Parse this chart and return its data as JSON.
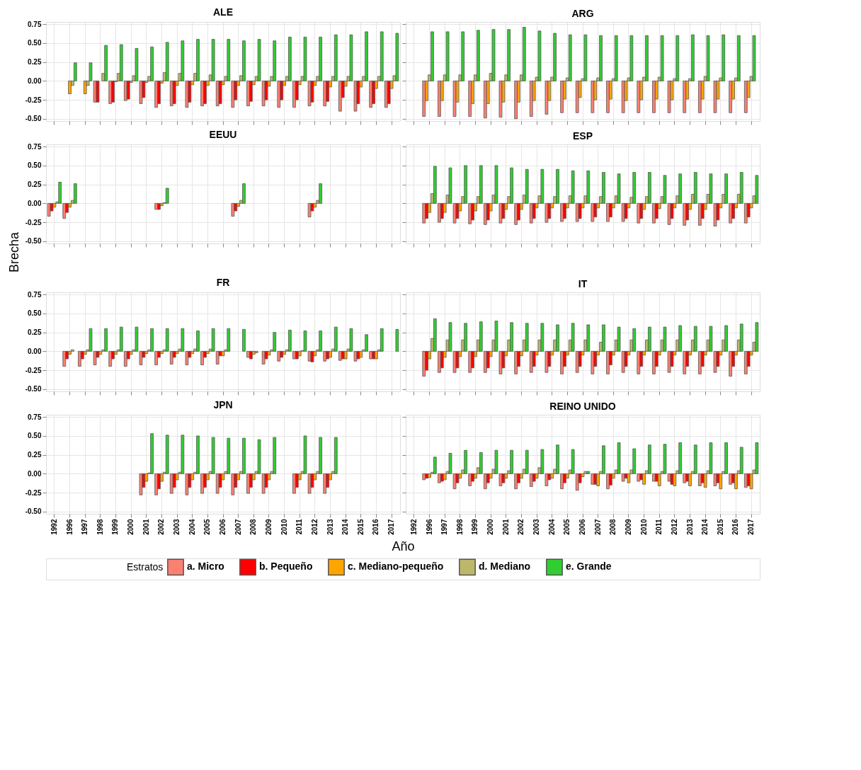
{
  "chart_data": [
    {
      "type": "bar",
      "title": "ALE",
      "tick_labels": "y",
      "grid": true,
      "legend": "bottom",
      "legend_title": "Estratos",
      "ylim": [
        -0.53,
        0.78
      ],
      "yticks": [
        {
          "value": -0.5,
          "label": "-0.50"
        },
        {
          "value": -0.25,
          "label": "-0.25"
        },
        {
          "value": 0,
          "label": "0.00"
        },
        {
          "value": 0.25,
          "label": "0.25"
        },
        {
          "value": 0.5,
          "label": "0.50"
        },
        {
          "value": 0.75,
          "label": "0.75"
        }
      ],
      "categories": [
        "1992",
        "1996",
        "1997",
        "1998",
        "1999",
        "2000",
        "2001",
        "2002",
        "2003",
        "2004",
        "2005",
        "2006",
        "2007",
        "2008",
        "2009",
        "2010",
        "2011",
        "2012",
        "2013",
        "2014",
        "2015",
        "2016",
        "2017"
      ],
      "series": [
        {
          "name": "a. Micro",
          "color": "#fa8072",
          "values": [
            null,
            null,
            null,
            -0.28,
            -0.3,
            -0.26,
            -0.3,
            -0.35,
            -0.33,
            -0.35,
            -0.33,
            -0.33,
            -0.35,
            -0.33,
            -0.33,
            -0.35,
            -0.35,
            -0.33,
            -0.33,
            -0.4,
            -0.4,
            -0.35,
            -0.35
          ]
        },
        {
          "name": "b. Pequeño",
          "color": "#ff0000",
          "values": [
            null,
            null,
            null,
            -0.28,
            -0.28,
            -0.24,
            -0.22,
            -0.3,
            -0.3,
            -0.28,
            -0.3,
            -0.3,
            -0.25,
            -0.27,
            -0.25,
            -0.25,
            -0.25,
            -0.28,
            -0.27,
            -0.22,
            -0.3,
            -0.3,
            -0.3
          ]
        },
        {
          "name": "c. Mediano-pequeño",
          "color": "#ffa500",
          "values": [
            null,
            -0.17,
            -0.17,
            null,
            -0.01,
            -0.02,
            -0.02,
            -0.03,
            -0.06,
            -0.05,
            -0.06,
            -0.05,
            -0.06,
            -0.05,
            -0.07,
            -0.06,
            -0.05,
            -0.06,
            -0.08,
            -0.07,
            -0.08,
            -0.1,
            -0.1
          ]
        },
        {
          "name": "d. Mediano",
          "color": "#bdb76b",
          "values": [
            null,
            -0.06,
            -0.06,
            0.1,
            0.1,
            0.07,
            0.06,
            0.11,
            0.1,
            0.1,
            0.08,
            0.06,
            0.07,
            0.06,
            0.06,
            0.06,
            0.06,
            0.06,
            0.06,
            0.06,
            0.06,
            0.06,
            0.07
          ]
        },
        {
          "name": "e. Grande",
          "color": "#32cd32",
          "values": [
            null,
            0.24,
            0.24,
            0.47,
            0.48,
            0.43,
            0.45,
            0.51,
            0.53,
            0.55,
            0.55,
            0.55,
            0.53,
            0.55,
            0.53,
            0.58,
            0.58,
            0.58,
            0.61,
            0.61,
            0.65,
            0.65,
            0.63
          ]
        }
      ]
    },
    {
      "type": "bar",
      "title": "ARG",
      "tick_labels": false,
      "grid": true,
      "ylim": [
        -0.53,
        0.78
      ],
      "yticks": [
        -0.5,
        -0.25,
        0,
        0.25,
        0.5,
        0.75
      ],
      "categories": [
        "1992",
        "1996",
        "1997",
        "1998",
        "1999",
        "2000",
        "2001",
        "2002",
        "2003",
        "2004",
        "2005",
        "2006",
        "2007",
        "2008",
        "2009",
        "2010",
        "2011",
        "2012",
        "2013",
        "2014",
        "2015",
        "2016",
        "2017"
      ],
      "series": [
        {
          "name": "a. Micro",
          "color": "#fa8072",
          "values": [
            null,
            -0.47,
            -0.47,
            -0.47,
            -0.47,
            -0.49,
            -0.48,
            -0.5,
            -0.47,
            -0.44,
            -0.42,
            -0.42,
            -0.42,
            -0.42,
            -0.42,
            -0.42,
            -0.42,
            -0.42,
            -0.42,
            -0.42,
            -0.42,
            -0.42,
            -0.42
          ]
        },
        {
          "name": "c. Mediano-pequeño",
          "color": "#ffa500",
          "values": [
            null,
            -0.26,
            -0.26,
            -0.28,
            -0.3,
            -0.3,
            -0.28,
            -0.28,
            -0.26,
            -0.26,
            -0.24,
            -0.22,
            -0.25,
            -0.24,
            -0.26,
            -0.25,
            -0.24,
            -0.25,
            -0.24,
            -0.24,
            -0.24,
            -0.24,
            -0.22
          ]
        },
        {
          "name": "d. Mediano",
          "color": "#bdb76b",
          "values": [
            null,
            0.08,
            0.08,
            0.08,
            0.08,
            0.1,
            0.08,
            0.08,
            0.05,
            0.05,
            0.04,
            0.03,
            0.04,
            0.03,
            0.04,
            0.05,
            0.05,
            0.03,
            0.03,
            0.06,
            0.04,
            0.04,
            0.06
          ]
        },
        {
          "name": "e. Grande",
          "color": "#32cd32",
          "values": [
            null,
            0.65,
            0.65,
            0.65,
            0.67,
            0.68,
            0.68,
            0.71,
            0.66,
            0.63,
            0.61,
            0.61,
            0.6,
            0.6,
            0.6,
            0.6,
            0.6,
            0.6,
            0.61,
            0.6,
            0.61,
            0.6,
            0.6
          ]
        }
      ]
    },
    {
      "type": "bar",
      "title": "EEUU",
      "ylabel": "Brecha",
      "tick_labels": "y",
      "grid": true,
      "ylim": [
        -0.53,
        0.78
      ],
      "yticks": [
        {
          "value": -0.5,
          "label": "-0.50"
        },
        {
          "value": -0.25,
          "label": "-0.25"
        },
        {
          "value": 0,
          "label": "0.00"
        },
        {
          "value": 0.25,
          "label": "0.25"
        },
        {
          "value": 0.5,
          "label": "0.50"
        },
        {
          "value": 0.75,
          "label": "0.75"
        }
      ],
      "categories": [
        "1992",
        "1996",
        "1997",
        "1998",
        "1999",
        "2000",
        "2001",
        "2002",
        "2003",
        "2004",
        "2005",
        "2006",
        "2007",
        "2008",
        "2009",
        "2010",
        "2011",
        "2012",
        "2013",
        "2014",
        "2015",
        "2016",
        "2017"
      ],
      "series": [
        {
          "name": "a. Micro",
          "color": "#fa8072",
          "values": [
            -0.17,
            -0.2,
            null,
            null,
            null,
            null,
            null,
            -0.08,
            null,
            null,
            null,
            null,
            -0.17,
            null,
            null,
            null,
            null,
            -0.18,
            null,
            null,
            null,
            null,
            null
          ]
        },
        {
          "name": "b. Pequeño",
          "color": "#ff0000",
          "values": [
            -0.1,
            -0.12,
            null,
            null,
            null,
            null,
            null,
            -0.08,
            null,
            null,
            null,
            null,
            -0.1,
            null,
            null,
            null,
            null,
            -0.1,
            null,
            null,
            null,
            null,
            null
          ]
        },
        {
          "name": "c. Mediano-pequeño",
          "color": "#ffa500",
          "values": [
            -0.05,
            -0.05,
            null,
            null,
            null,
            null,
            null,
            -0.03,
            null,
            null,
            null,
            null,
            -0.04,
            null,
            null,
            null,
            null,
            -0.05,
            null,
            null,
            null,
            null,
            null
          ]
        },
        {
          "name": "d. Mediano",
          "color": "#bdb76b",
          "values": [
            0.02,
            0.04,
            null,
            null,
            null,
            null,
            null,
            0.01,
            null,
            null,
            null,
            null,
            0.04,
            null,
            null,
            null,
            null,
            0.04,
            null,
            null,
            null,
            null,
            null
          ]
        },
        {
          "name": "e. Grande",
          "color": "#32cd32",
          "values": [
            0.28,
            0.26,
            null,
            null,
            null,
            null,
            null,
            0.2,
            null,
            null,
            null,
            null,
            0.26,
            null,
            null,
            null,
            null,
            0.26,
            null,
            null,
            null,
            null,
            null
          ]
        }
      ]
    },
    {
      "type": "bar",
      "title": "ESP",
      "tick_labels": false,
      "grid": true,
      "ylim": [
        -0.53,
        0.78
      ],
      "yticks": [
        -0.5,
        -0.25,
        0,
        0.25,
        0.5,
        0.75
      ],
      "categories": [
        "1992",
        "1996",
        "1997",
        "1998",
        "1999",
        "2000",
        "2001",
        "2002",
        "2003",
        "2004",
        "2005",
        "2006",
        "2007",
        "2008",
        "2009",
        "2010",
        "2011",
        "2012",
        "2013",
        "2014",
        "2015",
        "2016",
        "2017"
      ],
      "series": [
        {
          "name": "a. Micro",
          "color": "#fa8072",
          "values": [
            null,
            -0.26,
            -0.25,
            -0.26,
            -0.27,
            -0.28,
            -0.26,
            -0.28,
            -0.26,
            -0.25,
            -0.24,
            -0.24,
            -0.24,
            -0.24,
            -0.24,
            -0.26,
            -0.26,
            -0.28,
            -0.29,
            -0.29,
            -0.3,
            -0.26,
            -0.26
          ]
        },
        {
          "name": "b. Pequeño",
          "color": "#ff0000",
          "values": [
            null,
            -0.2,
            -0.2,
            -0.2,
            -0.22,
            -0.22,
            -0.2,
            -0.22,
            -0.2,
            -0.2,
            -0.2,
            -0.2,
            -0.18,
            -0.18,
            -0.2,
            -0.2,
            -0.2,
            -0.2,
            -0.22,
            -0.2,
            -0.22,
            -0.2,
            -0.18
          ]
        },
        {
          "name": "c. Mediano-pequeño",
          "color": "#ffa500",
          "values": [
            null,
            -0.12,
            -0.12,
            -0.1,
            -0.1,
            -0.1,
            -0.08,
            -0.08,
            -0.06,
            -0.06,
            -0.06,
            -0.06,
            -0.06,
            -0.06,
            -0.06,
            -0.08,
            -0.07,
            -0.06,
            -0.08,
            -0.08,
            -0.06,
            -0.06,
            -0.06
          ]
        },
        {
          "name": "d. Mediano",
          "color": "#bdb76b",
          "values": [
            null,
            0.13,
            0.11,
            0.09,
            0.09,
            0.11,
            0.09,
            0.11,
            0.1,
            0.09,
            0.1,
            0.1,
            0.09,
            0.1,
            0.08,
            0.09,
            0.09,
            0.1,
            0.12,
            0.12,
            0.12,
            0.12,
            0.1
          ]
        },
        {
          "name": "e. Grande",
          "color": "#32cd32",
          "values": [
            null,
            0.49,
            0.47,
            0.5,
            0.5,
            0.5,
            0.47,
            0.45,
            0.45,
            0.45,
            0.43,
            0.43,
            0.41,
            0.39,
            0.41,
            0.41,
            0.37,
            0.39,
            0.41,
            0.39,
            0.39,
            0.41,
            0.37
          ]
        }
      ]
    },
    {
      "type": "bar",
      "title": "FR",
      "tick_labels": "y",
      "grid": true,
      "ylim": [
        -0.53,
        0.78
      ],
      "yticks": [
        {
          "value": -0.5,
          "label": "-0.50"
        },
        {
          "value": -0.25,
          "label": "-0.25"
        },
        {
          "value": 0,
          "label": "0.00"
        },
        {
          "value": 0.25,
          "label": "0.25"
        },
        {
          "value": 0.5,
          "label": "0.50"
        },
        {
          "value": 0.75,
          "label": "0.75"
        }
      ],
      "categories": [
        "1992",
        "1996",
        "1997",
        "1998",
        "1999",
        "2000",
        "2001",
        "2002",
        "2003",
        "2004",
        "2005",
        "2006",
        "2007",
        "2008",
        "2009",
        "2010",
        "2011",
        "2012",
        "2013",
        "2014",
        "2015",
        "2016",
        "2017"
      ],
      "series": [
        {
          "name": "a. Micro",
          "color": "#fa8072",
          "values": [
            null,
            -0.2,
            -0.2,
            -0.18,
            -0.2,
            -0.2,
            -0.18,
            -0.18,
            -0.17,
            -0.18,
            -0.18,
            -0.17,
            null,
            -0.08,
            -0.17,
            -0.13,
            -0.1,
            -0.13,
            -0.13,
            -0.12,
            -0.13,
            -0.1,
            null
          ]
        },
        {
          "name": "b. Pequeño",
          "color": "#ff0000",
          "values": [
            null,
            -0.1,
            -0.1,
            -0.08,
            -0.1,
            -0.1,
            -0.08,
            -0.08,
            -0.08,
            -0.08,
            -0.08,
            -0.06,
            null,
            -0.1,
            -0.1,
            -0.08,
            -0.1,
            -0.14,
            -0.1,
            -0.1,
            -0.1,
            -0.1,
            null
          ]
        },
        {
          "name": "c. Mediano-pequeño",
          "color": "#ffa500",
          "values": [
            null,
            -0.04,
            -0.04,
            -0.04,
            -0.04,
            -0.04,
            -0.03,
            -0.03,
            -0.03,
            -0.03,
            -0.03,
            -0.06,
            null,
            -0.04,
            -0.05,
            -0.04,
            -0.06,
            -0.06,
            -0.08,
            -0.1,
            -0.08,
            -0.1,
            null
          ]
        },
        {
          "name": "d. Mediano",
          "color": "#bdb76b",
          "values": [
            null,
            0.02,
            0.02,
            0.02,
            0.02,
            0.02,
            0.02,
            0.02,
            0.03,
            0.03,
            0.03,
            0.02,
            null,
            -0.02,
            0.02,
            0.02,
            0.01,
            0.02,
            0.03,
            0.03,
            0.02,
            0.02,
            null
          ]
        },
        {
          "name": "e. Grande",
          "color": "#32cd32",
          "values": [
            null,
            null,
            0.3,
            0.3,
            0.32,
            0.32,
            0.3,
            0.3,
            0.3,
            0.27,
            0.3,
            0.3,
            0.29,
            null,
            0.25,
            0.28,
            0.27,
            0.27,
            0.32,
            0.3,
            0.22,
            0.3,
            0.29
          ]
        }
      ]
    },
    {
      "type": "bar",
      "title": "IT",
      "tick_labels": false,
      "grid": true,
      "ylim": [
        -0.53,
        0.78
      ],
      "yticks": [
        -0.5,
        -0.25,
        0,
        0.25,
        0.5,
        0.75
      ],
      "categories": [
        "1992",
        "1996",
        "1997",
        "1998",
        "1999",
        "2000",
        "2001",
        "2002",
        "2003",
        "2004",
        "2005",
        "2006",
        "2007",
        "2008",
        "2009",
        "2010",
        "2011",
        "2012",
        "2013",
        "2014",
        "2015",
        "2016",
        "2017"
      ],
      "series": [
        {
          "name": "a. Micro",
          "color": "#fa8072",
          "values": [
            null,
            -0.33,
            -0.28,
            -0.28,
            -0.28,
            -0.28,
            -0.3,
            -0.3,
            -0.28,
            -0.28,
            -0.3,
            -0.28,
            -0.3,
            -0.3,
            -0.28,
            -0.3,
            -0.3,
            -0.28,
            -0.3,
            -0.3,
            -0.28,
            -0.33,
            -0.3
          ]
        },
        {
          "name": "b. Pequeño",
          "color": "#ff0000",
          "values": [
            null,
            -0.25,
            -0.22,
            -0.22,
            -0.22,
            -0.22,
            -0.22,
            -0.2,
            -0.2,
            -0.2,
            -0.2,
            -0.2,
            -0.2,
            -0.18,
            -0.2,
            -0.2,
            -0.2,
            -0.2,
            -0.2,
            -0.2,
            -0.2,
            -0.2,
            -0.2
          ]
        },
        {
          "name": "c. Mediano-pequeño",
          "color": "#ffa500",
          "values": [
            null,
            -0.1,
            -0.08,
            -0.07,
            -0.07,
            -0.07,
            -0.06,
            -0.06,
            -0.05,
            -0.05,
            -0.05,
            -0.05,
            -0.05,
            -0.05,
            -0.05,
            -0.05,
            -0.05,
            -0.05,
            -0.05,
            -0.05,
            -0.05,
            -0.05,
            -0.05
          ]
        },
        {
          "name": "d. Mediano",
          "color": "#bdb76b",
          "values": [
            null,
            0.17,
            0.15,
            0.15,
            0.15,
            0.15,
            0.15,
            0.15,
            0.15,
            0.15,
            0.15,
            0.15,
            0.12,
            0.15,
            0.15,
            0.15,
            0.15,
            0.15,
            0.15,
            0.15,
            0.15,
            0.15,
            0.12
          ]
        },
        {
          "name": "e. Grande",
          "color": "#32cd32",
          "values": [
            null,
            0.43,
            0.38,
            0.37,
            0.39,
            0.4,
            0.38,
            0.37,
            0.37,
            0.35,
            0.37,
            0.35,
            0.35,
            0.32,
            0.3,
            0.32,
            0.32,
            0.34,
            0.33,
            0.33,
            0.34,
            0.36,
            0.38
          ]
        }
      ]
    },
    {
      "type": "bar",
      "title": "JPN",
      "xlabel": "Año",
      "grid": true,
      "ylim": [
        -0.53,
        0.78
      ],
      "yticks": [
        {
          "value": -0.5,
          "label": "-0.50"
        },
        {
          "value": -0.25,
          "label": "-0.25"
        },
        {
          "value": 0,
          "label": "0.00"
        },
        {
          "value": 0.25,
          "label": "0.25"
        },
        {
          "value": 0.5,
          "label": "0.50"
        },
        {
          "value": 0.75,
          "label": "0.75"
        }
      ],
      "categories": [
        "1992",
        "1996",
        "1997",
        "1998",
        "1999",
        "2000",
        "2001",
        "2002",
        "2003",
        "2004",
        "2005",
        "2006",
        "2007",
        "2008",
        "2009",
        "2010",
        "2011",
        "2012",
        "2013",
        "2014",
        "2015",
        "2016",
        "2017"
      ],
      "series": [
        {
          "name": "a. Micro",
          "color": "#fa8072",
          "values": [
            null,
            null,
            null,
            null,
            null,
            null,
            -0.28,
            -0.28,
            -0.26,
            -0.28,
            -0.26,
            -0.26,
            -0.28,
            -0.26,
            -0.26,
            null,
            -0.26,
            -0.26,
            -0.26,
            null,
            null,
            null,
            null
          ]
        },
        {
          "name": "b. Pequeño",
          "color": "#ff0000",
          "values": [
            null,
            null,
            null,
            null,
            null,
            null,
            -0.18,
            -0.2,
            -0.18,
            -0.18,
            -0.18,
            -0.18,
            -0.18,
            -0.18,
            -0.18,
            null,
            -0.18,
            -0.18,
            -0.18,
            null,
            null,
            null,
            null
          ]
        },
        {
          "name": "c. Mediano-pequeño",
          "color": "#ffa500",
          "values": [
            null,
            null,
            null,
            null,
            null,
            null,
            -0.1,
            -0.1,
            -0.08,
            -0.08,
            -0.08,
            -0.08,
            -0.08,
            -0.08,
            -0.08,
            null,
            -0.08,
            -0.08,
            -0.08,
            null,
            null,
            null,
            null
          ]
        },
        {
          "name": "d. Mediano",
          "color": "#bdb76b",
          "values": [
            null,
            null,
            null,
            null,
            null,
            null,
            0.01,
            0.02,
            0.02,
            0.02,
            0.03,
            0.03,
            0.03,
            0.03,
            0.03,
            null,
            0.03,
            0.03,
            0.03,
            null,
            null,
            null,
            null
          ]
        },
        {
          "name": "e. Grande",
          "color": "#32cd32",
          "values": [
            null,
            null,
            null,
            null,
            null,
            null,
            0.53,
            0.51,
            0.51,
            0.5,
            0.48,
            0.47,
            0.47,
            0.45,
            0.48,
            null,
            0.5,
            0.48,
            0.48,
            null,
            null,
            null,
            null
          ]
        }
      ]
    },
    {
      "type": "bar",
      "title": "REINO UNIDO",
      "tick_labels": "x",
      "grid": true,
      "ylim": [
        -0.53,
        0.78
      ],
      "yticks": [
        -0.5,
        -0.25,
        0,
        0.25,
        0.5,
        0.75
      ],
      "categories": [
        "1992",
        "1996",
        "1997",
        "1998",
        "1999",
        "2000",
        "2001",
        "2002",
        "2003",
        "2004",
        "2005",
        "2006",
        "2007",
        "2008",
        "2009",
        "2010",
        "2011",
        "2012",
        "2013",
        "2014",
        "2015",
        "2016",
        "2017"
      ],
      "series": [
        {
          "name": "a. Micro",
          "color": "#fa8072",
          "values": [
            null,
            -0.08,
            -0.12,
            -0.2,
            -0.16,
            -0.2,
            -0.16,
            -0.2,
            -0.17,
            -0.16,
            -0.2,
            -0.22,
            -0.14,
            -0.2,
            -0.1,
            -0.1,
            -0.1,
            -0.1,
            -0.12,
            -0.16,
            -0.16,
            -0.14,
            -0.18
          ]
        },
        {
          "name": "b. Pequeño",
          "color": "#ff0000",
          "values": [
            null,
            -0.06,
            -0.1,
            -0.12,
            -0.1,
            -0.12,
            -0.12,
            -0.12,
            -0.1,
            -0.08,
            -0.12,
            -0.12,
            -0.14,
            -0.15,
            -0.06,
            -0.08,
            -0.1,
            -0.14,
            -0.1,
            -0.12,
            -0.12,
            -0.12,
            -0.16
          ]
        },
        {
          "name": "c. Mediano-pequeño",
          "color": "#ffa500",
          "values": [
            null,
            -0.05,
            -0.08,
            -0.06,
            -0.06,
            -0.06,
            -0.06,
            -0.06,
            -0.06,
            -0.06,
            -0.06,
            -0.04,
            -0.16,
            -0.06,
            -0.12,
            -0.14,
            -0.16,
            -0.16,
            -0.16,
            -0.18,
            -0.2,
            -0.2,
            -0.2
          ]
        },
        {
          "name": "d. Mediano",
          "color": "#bdb76b",
          "values": [
            null,
            0.02,
            0.03,
            0.05,
            0.08,
            0.06,
            0.04,
            0.06,
            0.08,
            0.06,
            0.05,
            0.03,
            0.03,
            0.05,
            0.05,
            0.04,
            0.03,
            0.04,
            0.03,
            0.04,
            0.03,
            0.04,
            0.05
          ]
        },
        {
          "name": "e. Grande",
          "color": "#32cd32",
          "values": [
            null,
            0.22,
            0.27,
            0.31,
            0.28,
            0.31,
            0.31,
            0.31,
            0.32,
            0.38,
            0.32,
            0.03,
            0.37,
            0.41,
            0.33,
            0.38,
            0.39,
            0.41,
            0.38,
            0.41,
            0.41,
            0.35,
            0.41
          ]
        }
      ]
    }
  ]
}
